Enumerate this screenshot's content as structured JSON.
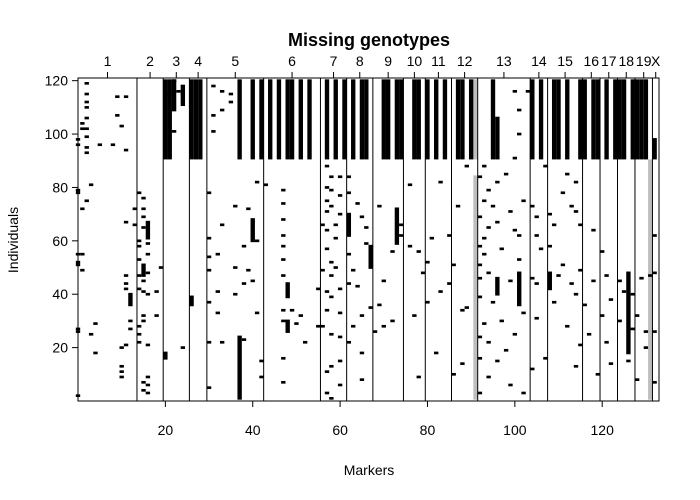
{
  "chart_data": {
    "type": "heatmap",
    "title": "Missing genotypes",
    "xlabel": "Markers",
    "ylabel": "Individuals",
    "xlim": [
      0,
      133
    ],
    "ylim": [
      0,
      121
    ],
    "x_ticks": [
      20,
      40,
      60,
      80,
      100,
      120
    ],
    "y_ticks": [
      20,
      40,
      60,
      80,
      100,
      120
    ],
    "grid": false,
    "colors": {
      "missing": "#000000",
      "partial": "#bebebe",
      "observed": "#ffffff"
    },
    "chromosomes": [
      {
        "label": "1",
        "start": 0,
        "end": 13.5
      },
      {
        "label": "2",
        "start": 13.5,
        "end": 19.5
      },
      {
        "label": "3",
        "start": 19.5,
        "end": 25.5
      },
      {
        "label": "4",
        "start": 25.5,
        "end": 29.5
      },
      {
        "label": "5",
        "start": 29.5,
        "end": 42.5
      },
      {
        "label": "6",
        "start": 42.5,
        "end": 55.5
      },
      {
        "label": "7",
        "start": 55.5,
        "end": 61.5
      },
      {
        "label": "8",
        "start": 61.5,
        "end": 67.5
      },
      {
        "label": "9",
        "start": 67.5,
        "end": 74.5
      },
      {
        "label": "10",
        "start": 74.5,
        "end": 79.5
      },
      {
        "label": "11",
        "start": 79.5,
        "end": 85.5
      },
      {
        "label": "12",
        "start": 85.5,
        "end": 91.5
      },
      {
        "label": "13",
        "start": 91.5,
        "end": 103.5
      },
      {
        "label": "14",
        "start": 103.5,
        "end": 107.5
      },
      {
        "label": "15",
        "start": 107.5,
        "end": 115.5
      },
      {
        "label": "16",
        "start": 115.5,
        "end": 119.5
      },
      {
        "label": "17",
        "start": 119.5,
        "end": 123.5
      },
      {
        "label": "18",
        "start": 123.5,
        "end": 127.5
      },
      {
        "label": "19",
        "start": 127.5,
        "end": 131.5
      },
      {
        "label": "X",
        "start": 131.5,
        "end": 133
      }
    ],
    "missing_blocks": [
      {
        "x": 20,
        "y0": 91,
        "y1": 120
      },
      {
        "x": 21,
        "y0": 91,
        "y1": 120
      },
      {
        "x": 22,
        "y0": 109,
        "y1": 120
      },
      {
        "x": 24,
        "y0": 111,
        "y1": 118
      },
      {
        "x": 26,
        "y0": 91,
        "y1": 120
      },
      {
        "x": 27,
        "y0": 91,
        "y1": 120
      },
      {
        "x": 28,
        "y0": 91,
        "y1": 120
      },
      {
        "x": 37,
        "y0": 91,
        "y1": 120
      },
      {
        "x": 40,
        "y0": 91,
        "y1": 120
      },
      {
        "x": 42,
        "y0": 91,
        "y1": 120
      },
      {
        "x": 44,
        "y0": 91,
        "y1": 120
      },
      {
        "x": 46,
        "y0": 91,
        "y1": 120
      },
      {
        "x": 48,
        "y0": 91,
        "y1": 120
      },
      {
        "x": 49,
        "y0": 91,
        "y1": 120
      },
      {
        "x": 51,
        "y0": 91,
        "y1": 120
      },
      {
        "x": 53,
        "y0": 91,
        "y1": 120
      },
      {
        "x": 57,
        "y0": 91,
        "y1": 120
      },
      {
        "x": 59,
        "y0": 91,
        "y1": 120
      },
      {
        "x": 61,
        "y0": 91,
        "y1": 120
      },
      {
        "x": 63,
        "y0": 91,
        "y1": 120
      },
      {
        "x": 65,
        "y0": 91,
        "y1": 120
      },
      {
        "x": 66,
        "y0": 91,
        "y1": 120
      },
      {
        "x": 70,
        "y0": 91,
        "y1": 120
      },
      {
        "x": 71,
        "y0": 91,
        "y1": 120
      },
      {
        "x": 73,
        "y0": 91,
        "y1": 120
      },
      {
        "x": 74,
        "y0": 91,
        "y1": 120
      },
      {
        "x": 77,
        "y0": 91,
        "y1": 120
      },
      {
        "x": 78,
        "y0": 91,
        "y1": 120
      },
      {
        "x": 80,
        "y0": 91,
        "y1": 120
      },
      {
        "x": 82,
        "y0": 91,
        "y1": 120
      },
      {
        "x": 84,
        "y0": 91,
        "y1": 120
      },
      {
        "x": 87,
        "y0": 91,
        "y1": 120
      },
      {
        "x": 88,
        "y0": 91,
        "y1": 120
      },
      {
        "x": 90,
        "y0": 91,
        "y1": 120
      },
      {
        "x": 95,
        "y0": 91,
        "y1": 120
      },
      {
        "x": 96,
        "y0": 91,
        "y1": 106
      },
      {
        "x": 104,
        "y0": 91,
        "y1": 120
      },
      {
        "x": 106,
        "y0": 91,
        "y1": 120
      },
      {
        "x": 109,
        "y0": 91,
        "y1": 120
      },
      {
        "x": 110,
        "y0": 91,
        "y1": 120
      },
      {
        "x": 112,
        "y0": 91,
        "y1": 120
      },
      {
        "x": 115,
        "y0": 91,
        "y1": 120
      },
      {
        "x": 116,
        "y0": 91,
        "y1": 120
      },
      {
        "x": 118,
        "y0": 91,
        "y1": 120
      },
      {
        "x": 119,
        "y0": 91,
        "y1": 120
      },
      {
        "x": 121,
        "y0": 91,
        "y1": 120
      },
      {
        "x": 123,
        "y0": 91,
        "y1": 120
      },
      {
        "x": 124,
        "y0": 91,
        "y1": 120
      },
      {
        "x": 125,
        "y0": 91,
        "y1": 120
      },
      {
        "x": 127,
        "y0": 91,
        "y1": 120
      },
      {
        "x": 128,
        "y0": 91,
        "y1": 120
      },
      {
        "x": 129,
        "y0": 91,
        "y1": 120
      },
      {
        "x": 130,
        "y0": 91,
        "y1": 120
      },
      {
        "x": 132,
        "y0": 91,
        "y1": 98
      },
      {
        "x": 37,
        "y0": 1,
        "y1": 24
      },
      {
        "x": 40,
        "y0": 60,
        "y1": 68
      },
      {
        "x": 48,
        "y0": 26,
        "y1": 30
      },
      {
        "x": 48,
        "y0": 39,
        "y1": 44
      },
      {
        "x": 73,
        "y0": 59,
        "y1": 72
      },
      {
        "x": 126,
        "y0": 18,
        "y1": 48
      },
      {
        "x": 96,
        "y0": 40,
        "y1": 46
      },
      {
        "x": 20,
        "y0": 16,
        "y1": 18
      },
      {
        "x": 26,
        "y0": 36,
        "y1": 39
      },
      {
        "x": 15,
        "y0": 47,
        "y1": 51
      },
      {
        "x": 12,
        "y0": 36,
        "y1": 40
      },
      {
        "x": 16,
        "y0": 61,
        "y1": 67
      },
      {
        "x": 101,
        "y0": 36,
        "y1": 48
      },
      {
        "x": 108,
        "y0": 42,
        "y1": 48
      },
      {
        "x": 67,
        "y0": 50,
        "y1": 58
      },
      {
        "x": 62,
        "y0": 62,
        "y1": 70
      }
    ],
    "partial_blocks": [
      {
        "x": 91,
        "y0": 91,
        "y1": 120
      },
      {
        "x": 91,
        "y0": 1,
        "y1": 84
      },
      {
        "x": 131,
        "y0": 1,
        "y1": 90
      }
    ],
    "missing_points": [
      [
        0,
        2
      ],
      [
        0,
        27
      ],
      [
        0,
        26
      ],
      [
        0,
        51
      ],
      [
        0,
        52
      ],
      [
        0,
        55
      ],
      [
        0,
        79
      ],
      [
        0,
        78
      ],
      [
        0,
        96
      ],
      [
        0,
        98
      ],
      [
        1,
        104
      ],
      [
        1,
        102
      ],
      [
        1,
        72
      ],
      [
        1,
        49
      ],
      [
        1,
        55
      ],
      [
        2,
        115
      ],
      [
        2,
        119
      ],
      [
        2,
        112
      ],
      [
        2,
        110
      ],
      [
        2,
        106
      ],
      [
        2,
        102
      ],
      [
        2,
        99
      ],
      [
        2,
        95
      ],
      [
        2,
        93
      ],
      [
        2,
        75
      ],
      [
        3,
        81
      ],
      [
        3,
        25
      ],
      [
        4,
        29
      ],
      [
        4,
        18
      ],
      [
        5,
        96
      ],
      [
        8,
        96
      ],
      [
        9,
        114
      ],
      [
        9,
        107
      ],
      [
        10,
        103
      ],
      [
        10,
        20
      ],
      [
        10,
        13
      ],
      [
        10,
        11
      ],
      [
        10,
        9
      ],
      [
        11,
        114
      ],
      [
        11,
        94
      ],
      [
        11,
        67
      ],
      [
        11,
        21
      ],
      [
        11,
        47
      ],
      [
        11,
        44
      ],
      [
        11,
        42
      ],
      [
        12,
        30
      ],
      [
        12,
        27
      ],
      [
        13,
        72
      ],
      [
        13,
        66
      ],
      [
        14,
        78
      ],
      [
        14,
        60
      ],
      [
        14,
        58
      ],
      [
        14,
        53
      ],
      [
        14,
        47
      ],
      [
        14,
        42
      ],
      [
        14,
        28
      ],
      [
        14,
        25
      ],
      [
        14,
        22
      ],
      [
        15,
        76
      ],
      [
        15,
        72
      ],
      [
        15,
        69
      ],
      [
        15,
        65
      ],
      [
        15,
        45
      ],
      [
        15,
        41
      ],
      [
        15,
        32
      ],
      [
        15,
        30
      ],
      [
        15,
        7
      ],
      [
        15,
        4
      ],
      [
        16,
        59
      ],
      [
        16,
        55
      ],
      [
        16,
        48
      ],
      [
        16,
        40
      ],
      [
        16,
        21
      ],
      [
        16,
        9
      ],
      [
        16,
        6
      ],
      [
        16,
        3
      ],
      [
        18,
        41
      ],
      [
        18,
        32
      ],
      [
        19,
        50
      ],
      [
        21,
        115
      ],
      [
        22,
        101
      ],
      [
        22,
        120
      ],
      [
        23,
        116
      ],
      [
        24,
        115
      ],
      [
        24,
        20
      ],
      [
        30,
        78
      ],
      [
        30,
        61
      ],
      [
        30,
        54
      ],
      [
        30,
        49
      ],
      [
        30,
        37
      ],
      [
        30,
        22
      ],
      [
        30,
        5
      ],
      [
        31,
        118
      ],
      [
        31,
        107
      ],
      [
        31,
        101
      ],
      [
        32,
        55
      ],
      [
        32,
        41
      ],
      [
        32,
        33
      ],
      [
        33,
        116
      ],
      [
        33,
        109
      ],
      [
        33,
        66
      ],
      [
        33,
        22
      ],
      [
        35,
        115
      ],
      [
        35,
        112
      ],
      [
        36,
        73
      ],
      [
        36,
        50
      ],
      [
        36,
        40
      ],
      [
        38,
        58
      ],
      [
        38,
        44
      ],
      [
        38,
        23
      ],
      [
        39,
        72
      ],
      [
        39,
        49
      ],
      [
        40,
        45
      ],
      [
        41,
        82
      ],
      [
        41,
        60
      ],
      [
        41,
        33
      ],
      [
        42,
        9
      ],
      [
        42,
        15
      ],
      [
        43,
        81
      ],
      [
        47,
        79
      ],
      [
        47,
        74
      ],
      [
        47,
        68
      ],
      [
        47,
        62
      ],
      [
        47,
        58
      ],
      [
        47,
        53
      ],
      [
        47,
        47
      ],
      [
        47,
        34
      ],
      [
        47,
        30
      ],
      [
        47,
        16
      ],
      [
        47,
        7
      ],
      [
        49,
        34
      ],
      [
        50,
        29
      ],
      [
        51,
        32
      ],
      [
        52,
        22
      ],
      [
        55,
        28
      ],
      [
        55,
        42
      ],
      [
        56,
        66
      ],
      [
        56,
        49
      ],
      [
        56,
        28
      ],
      [
        57,
        88
      ],
      [
        57,
        80
      ],
      [
        57,
        75
      ],
      [
        57,
        71
      ],
      [
        57,
        64
      ],
      [
        57,
        57
      ],
      [
        57,
        41
      ],
      [
        57,
        34
      ],
      [
        57,
        11
      ],
      [
        57,
        3
      ],
      [
        58,
        84
      ],
      [
        58,
        79
      ],
      [
        58,
        73
      ],
      [
        58,
        52
      ],
      [
        58,
        47
      ],
      [
        58,
        39
      ],
      [
        58,
        25
      ],
      [
        58,
        13
      ],
      [
        58,
        1
      ],
      [
        59,
        66
      ],
      [
        59,
        61
      ],
      [
        59,
        50
      ],
      [
        60,
        84
      ],
      [
        60,
        77
      ],
      [
        60,
        70
      ],
      [
        60,
        42
      ],
      [
        60,
        33
      ],
      [
        60,
        24
      ],
      [
        60,
        15
      ],
      [
        60,
        6
      ],
      [
        62,
        84
      ],
      [
        62,
        78
      ],
      [
        62,
        55
      ],
      [
        62,
        44
      ],
      [
        62,
        22
      ],
      [
        63,
        49
      ],
      [
        63,
        28
      ],
      [
        64,
        74
      ],
      [
        64,
        43
      ],
      [
        65,
        69
      ],
      [
        65,
        32
      ],
      [
        65,
        18
      ],
      [
        65,
        8
      ],
      [
        66,
        65
      ],
      [
        66,
        59
      ],
      [
        67,
        35
      ],
      [
        68,
        26
      ],
      [
        69,
        73
      ],
      [
        69,
        36
      ],
      [
        70,
        45
      ],
      [
        70,
        28
      ],
      [
        72,
        56
      ],
      [
        72,
        30
      ],
      [
        74,
        66
      ],
      [
        74,
        62
      ],
      [
        76,
        81
      ],
      [
        76,
        58
      ],
      [
        77,
        32
      ],
      [
        78,
        9
      ],
      [
        78,
        56
      ],
      [
        79,
        48
      ],
      [
        80,
        52
      ],
      [
        80,
        37
      ],
      [
        81,
        61
      ],
      [
        82,
        18
      ],
      [
        83,
        82
      ],
      [
        83,
        41
      ],
      [
        85,
        62
      ],
      [
        85,
        44
      ],
      [
        86,
        51
      ],
      [
        86,
        10
      ],
      [
        87,
        73
      ],
      [
        88,
        14
      ],
      [
        88,
        34
      ],
      [
        89,
        88
      ],
      [
        89,
        35
      ],
      [
        92,
        84
      ],
      [
        92,
        69
      ],
      [
        92,
        58
      ],
      [
        92,
        51
      ],
      [
        92,
        46
      ],
      [
        92,
        39
      ],
      [
        92,
        24
      ],
      [
        92,
        16
      ],
      [
        92,
        3
      ],
      [
        93,
        88
      ],
      [
        93,
        75
      ],
      [
        93,
        61
      ],
      [
        93,
        55
      ],
      [
        93,
        29
      ],
      [
        94,
        79
      ],
      [
        94,
        65
      ],
      [
        94,
        48
      ],
      [
        94,
        22
      ],
      [
        94,
        9
      ],
      [
        95,
        73
      ],
      [
        95,
        37
      ],
      [
        96,
        82
      ],
      [
        96,
        67
      ],
      [
        96,
        15
      ],
      [
        97,
        57
      ],
      [
        97,
        30
      ],
      [
        98,
        85
      ],
      [
        98,
        19
      ],
      [
        99,
        71
      ],
      [
        99,
        45
      ],
      [
        99,
        6
      ],
      [
        100,
        116
      ],
      [
        100,
        91
      ],
      [
        100,
        64
      ],
      [
        100,
        25
      ],
      [
        101,
        109
      ],
      [
        101,
        100
      ],
      [
        101,
        62
      ],
      [
        101,
        53
      ],
      [
        102,
        75
      ],
      [
        102,
        33
      ],
      [
        102,
        3
      ],
      [
        103,
        116
      ],
      [
        104,
        73
      ],
      [
        104,
        46
      ],
      [
        104,
        12
      ],
      [
        105,
        69
      ],
      [
        105,
        62
      ],
      [
        105,
        44
      ],
      [
        105,
        31
      ],
      [
        106,
        57
      ],
      [
        107,
        88
      ],
      [
        107,
        16
      ],
      [
        108,
        70
      ],
      [
        108,
        58
      ],
      [
        109,
        66
      ],
      [
        109,
        37
      ],
      [
        110,
        47
      ],
      [
        111,
        78
      ],
      [
        111,
        51
      ],
      [
        112,
        85
      ],
      [
        112,
        28
      ],
      [
        113,
        73
      ],
      [
        113,
        44
      ],
      [
        114,
        82
      ],
      [
        114,
        71
      ],
      [
        114,
        40
      ],
      [
        114,
        13
      ],
      [
        115,
        66
      ],
      [
        115,
        49
      ],
      [
        115,
        21
      ],
      [
        116,
        36
      ],
      [
        117,
        25
      ],
      [
        118,
        64
      ],
      [
        118,
        45
      ],
      [
        119,
        10
      ],
      [
        120,
        56
      ],
      [
        120,
        32
      ],
      [
        121,
        47
      ],
      [
        121,
        22
      ],
      [
        122,
        38
      ],
      [
        122,
        14
      ],
      [
        124,
        30
      ],
      [
        124,
        45
      ],
      [
        125,
        41
      ],
      [
        126,
        15
      ],
      [
        127,
        27
      ],
      [
        127,
        40
      ],
      [
        128,
        32
      ],
      [
        128,
        8
      ],
      [
        129,
        46
      ],
      [
        130,
        20
      ],
      [
        130,
        26
      ],
      [
        131,
        47
      ],
      [
        132,
        62
      ],
      [
        132,
        48
      ],
      [
        132,
        26
      ],
      [
        132,
        7
      ]
    ]
  }
}
